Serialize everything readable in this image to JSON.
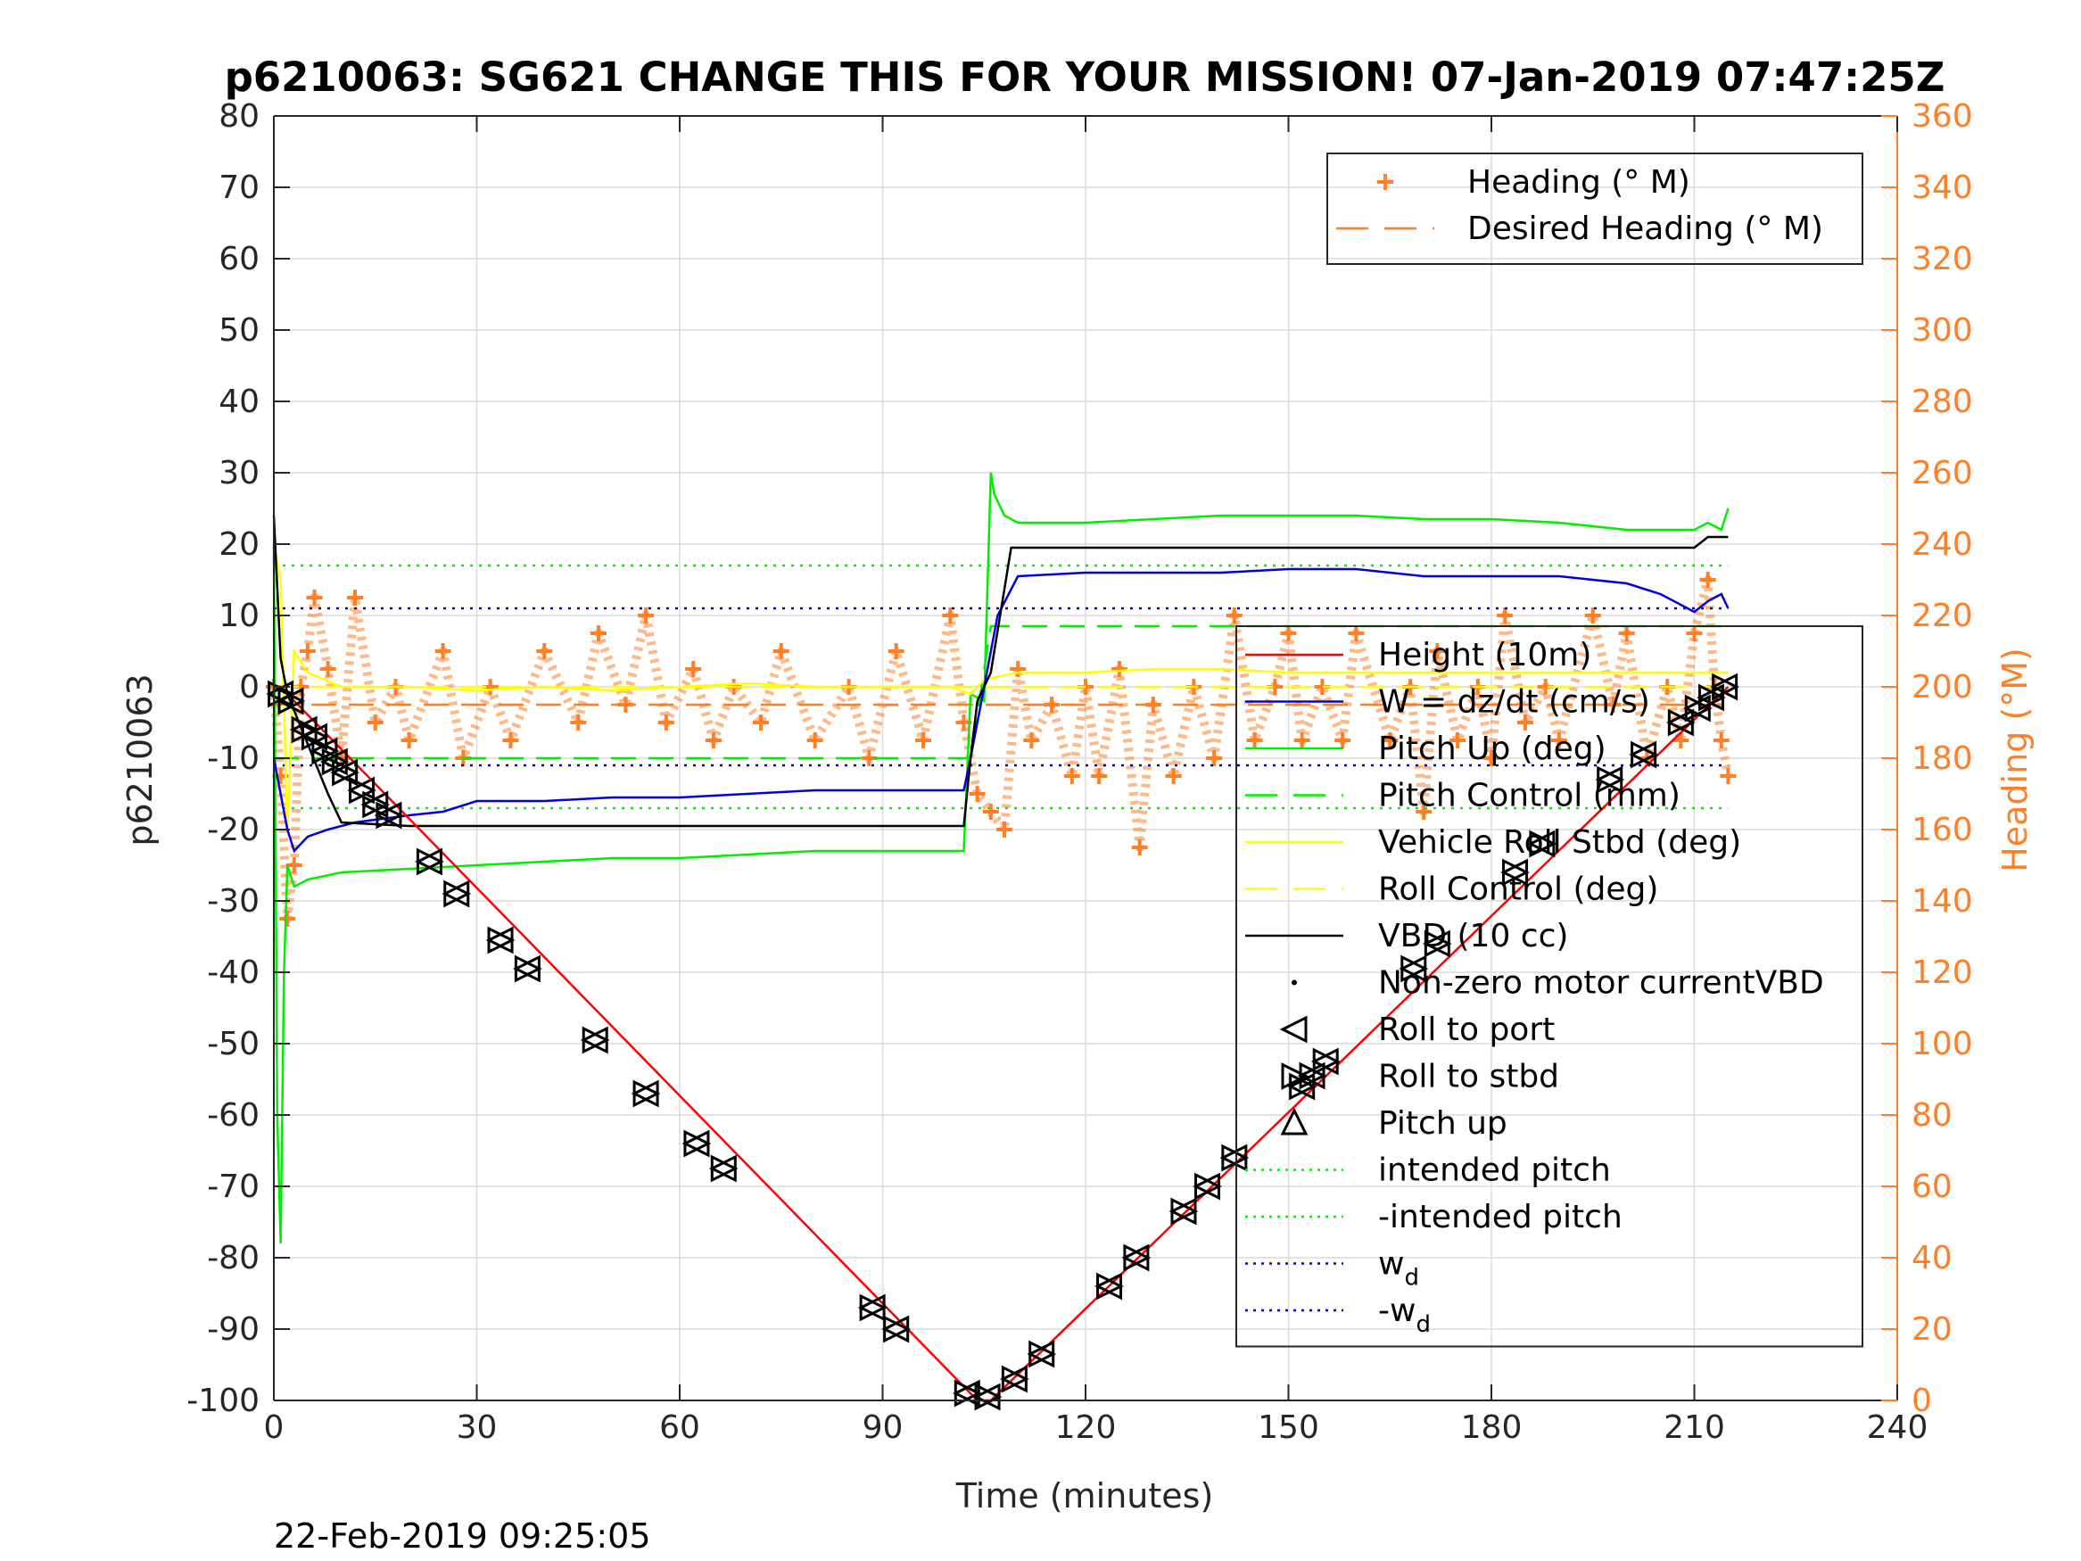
{
  "chart_data": {
    "type": "line",
    "title": "p6210063: SG621 CHANGE THIS FOR YOUR MISSION! 07-Jan-2019 07:47:25Z",
    "xlabel": "Time (minutes)",
    "ylabel": "p6210063",
    "y2label": "Heading (°M)",
    "xlim": [
      0,
      240
    ],
    "ylim": [
      -100,
      80
    ],
    "y2lim": [
      0,
      360
    ],
    "xticks": [
      "0",
      "30",
      "60",
      "90",
      "120",
      "150",
      "180",
      "210",
      "240"
    ],
    "yticks": [
      "80",
      "70",
      "60",
      "50",
      "40",
      "30",
      "20",
      "10",
      "0",
      "-10",
      "-20",
      "-30",
      "-40",
      "-50",
      "-60",
      "-70",
      "-80",
      "-90",
      "-100"
    ],
    "y2ticks": [
      "360",
      "340",
      "320",
      "300",
      "280",
      "260",
      "240",
      "220",
      "200",
      "180",
      "160",
      "140",
      "120",
      "100",
      "80",
      "60",
      "40",
      "20",
      "0"
    ],
    "grid": true,
    "timestamp": "22-Feb-2019 09:25:05",
    "colors": {
      "depth": "#ff0000",
      "w": "#0000dd",
      "pitch": "#00ee00",
      "roll": "#ffff00",
      "vbd": "#000000",
      "heading": "#ff7f27",
      "axis_right": "#ff7f27"
    },
    "legend_heading": {
      "position": "top-right",
      "entries": [
        {
          "label": "Heading (° M)",
          "style": "plus",
          "color": "#ff7f27"
        },
        {
          "label": "Desired Heading (° M)",
          "style": "dashed",
          "color": "#ff7f27"
        }
      ]
    },
    "legend_main": {
      "position": "right",
      "entries": [
        {
          "label": "Height (10m)",
          "style": "solid",
          "color": "#ff0000"
        },
        {
          "label": "W = dz/dt (cm/s)",
          "style": "solid",
          "color": "#0000dd"
        },
        {
          "label": "Pitch Up (deg)",
          "style": "solid",
          "color": "#00ee00"
        },
        {
          "label": "Pitch Control (mm)",
          "style": "dashed",
          "color": "#00ee00"
        },
        {
          "label": "Vehicle Roll Stbd (deg)",
          "style": "solid",
          "color": "#ffff00"
        },
        {
          "label": "Roll Control (deg)",
          "style": "dashed",
          "color": "#ffff00"
        },
        {
          "label": "VBD (10 cc)",
          "style": "solid",
          "color": "#000000"
        },
        {
          "label": "Non-zero motor currentVBD",
          "style": "dot",
          "color": "#000000"
        },
        {
          "label": "Roll to port",
          "style": "tri-left",
          "color": "#000000"
        },
        {
          "label": "Roll to stbd",
          "style": "tri-right",
          "color": "#000000"
        },
        {
          "label": "Pitch up",
          "style": "tri-up",
          "color": "#000000"
        },
        {
          "label": "intended pitch",
          "style": "dotted",
          "color": "#00ee00"
        },
        {
          "label": "-intended pitch",
          "style": "dotted",
          "color": "#00ee00"
        },
        {
          "label": "w",
          "sub": "d",
          "style": "dotted",
          "color": "#0000dd"
        },
        {
          "label": "-w",
          "sub": "d",
          "style": "dotted",
          "color": "#0000dd"
        }
      ]
    },
    "series": [
      {
        "name": "Height (10m)",
        "axis": "left",
        "style": "solid",
        "color": "#ff0000",
        "x": [
          0,
          2,
          104,
          106,
          215
        ],
        "y": [
          0,
          -1,
          -100,
          -100,
          0
        ]
      },
      {
        "name": "W = dz/dt (cm/s)",
        "axis": "left",
        "style": "solid",
        "color": "#0000dd",
        "x": [
          0,
          1,
          2,
          3,
          5,
          8,
          12,
          16,
          20,
          25,
          30,
          40,
          50,
          60,
          70,
          80,
          90,
          100,
          102,
          103,
          105,
          107,
          110,
          120,
          130,
          140,
          150,
          160,
          170,
          180,
          190,
          200,
          205,
          210,
          212,
          214,
          215
        ],
        "y": [
          -10,
          -15,
          -20,
          -23,
          -21,
          -20,
          -19,
          -18.5,
          -18,
          -17.5,
          -16,
          -16,
          -15.5,
          -15.5,
          -15,
          -14.5,
          -14.5,
          -14.5,
          -14.5,
          -10,
          0,
          10,
          15.5,
          16,
          16,
          16,
          16.5,
          16.5,
          15.5,
          15.5,
          15.5,
          14.5,
          13,
          10.5,
          12,
          13,
          11
        ]
      },
      {
        "name": "Pitch Up (deg)",
        "axis": "left",
        "style": "solid",
        "color": "#00ee00",
        "x": [
          0,
          0.5,
          1,
          1.5,
          2,
          3,
          5,
          10,
          20,
          30,
          40,
          50,
          60,
          70,
          80,
          90,
          100,
          102,
          103,
          105,
          106,
          106.5,
          107,
          108,
          110,
          120,
          130,
          140,
          150,
          160,
          170,
          180,
          190,
          200,
          210,
          212,
          214,
          215
        ],
        "y": [
          20,
          -60,
          -78,
          -40,
          -25,
          -28,
          -27,
          -26,
          -25.5,
          -25,
          -24.5,
          -24,
          -24,
          -23.5,
          -23,
          -23,
          -23,
          -23,
          -1,
          -2,
          30,
          27,
          26,
          24,
          23,
          23,
          23.5,
          24,
          24,
          24,
          23.5,
          23.5,
          23,
          22,
          22,
          23,
          22,
          25
        ]
      },
      {
        "name": "Pitch Control (mm)",
        "axis": "left",
        "style": "dashed",
        "color": "#00ee00",
        "x": [
          0,
          103,
          106,
          215
        ],
        "y": [
          -10,
          -10,
          8.5,
          8.5
        ]
      },
      {
        "name": "Vehicle Roll Stbd (deg)",
        "axis": "left",
        "style": "solid",
        "color": "#ffff00",
        "x": [
          0,
          1,
          2,
          3,
          5,
          10,
          20,
          30,
          40,
          50,
          60,
          70,
          80,
          90,
          100,
          103,
          105,
          110,
          120,
          130,
          140,
          150,
          160,
          170,
          180,
          190,
          200,
          210,
          215
        ],
        "y": [
          20,
          15,
          -20,
          5,
          2,
          0,
          0,
          -0.5,
          0,
          -0.5,
          0,
          0.5,
          0,
          0,
          0,
          -1,
          1,
          2,
          2,
          2.5,
          2.5,
          2,
          2,
          2,
          2,
          2,
          2,
          2,
          2
        ]
      },
      {
        "name": "Roll Control (deg)",
        "axis": "left",
        "style": "dashed",
        "color": "#ffff00",
        "x": [
          0,
          215
        ],
        "y": [
          0,
          0
        ]
      },
      {
        "name": "VBD (10 cc)",
        "axis": "left",
        "style": "solid",
        "color": "#000000",
        "x": [
          0,
          1,
          2,
          5,
          8,
          10,
          20,
          50,
          100,
          102,
          103,
          104,
          106,
          109,
          110,
          150,
          210,
          212,
          215
        ],
        "y": [
          24,
          4,
          -1,
          -8,
          -15,
          -19,
          -19.5,
          -19.5,
          -19.5,
          -19.5,
          -10,
          -2,
          2,
          19.5,
          19.5,
          19.5,
          19.5,
          21,
          21
        ]
      },
      {
        "name": "intended pitch",
        "axis": "left",
        "style": "dotted",
        "color": "#00ee00",
        "x": [
          0,
          215
        ],
        "y": [
          17,
          17
        ]
      },
      {
        "name": "-intended pitch",
        "axis": "left",
        "style": "dotted",
        "color": "#00ee00",
        "x": [
          0,
          215
        ],
        "y": [
          -17,
          -17
        ]
      },
      {
        "name": "w_d",
        "axis": "left",
        "style": "dotted",
        "color": "#0000dd",
        "x": [
          0,
          215
        ],
        "y": [
          11,
          11
        ]
      },
      {
        "name": "-w_d",
        "axis": "left",
        "style": "dotted",
        "color": "#0000dd",
        "x": [
          0,
          215
        ],
        "y": [
          -11,
          -11
        ]
      },
      {
        "name": "Desired Heading (° M)",
        "axis": "right",
        "style": "dashed",
        "color": "#ff7f27",
        "x": [
          0,
          215
        ],
        "y": [
          195,
          195
        ]
      },
      {
        "name": "Heading (° M)",
        "axis": "right",
        "style": "plus",
        "color": "#ff7f27",
        "x": [
          0,
          1,
          2,
          3,
          4,
          5,
          6,
          8,
          10,
          12,
          15,
          18,
          20,
          25,
          28,
          32,
          35,
          40,
          45,
          48,
          52,
          55,
          58,
          62,
          65,
          68,
          72,
          75,
          80,
          85,
          88,
          92,
          96,
          100,
          102,
          104,
          106,
          108,
          110,
          112,
          115,
          118,
          120,
          122,
          125,
          128,
          130,
          133,
          136,
          139,
          142,
          145,
          148,
          150,
          152,
          155,
          158,
          160,
          165,
          168,
          170,
          172,
          175,
          178,
          180,
          182,
          185,
          188,
          190,
          195,
          198,
          200,
          203,
          206,
          208,
          210,
          212,
          213,
          214,
          215
        ],
        "y": [
          200,
          175,
          135,
          150,
          200,
          210,
          225,
          205,
          180,
          225,
          190,
          200,
          185,
          210,
          180,
          200,
          185,
          210,
          190,
          215,
          195,
          220,
          190,
          205,
          185,
          200,
          190,
          210,
          185,
          200,
          180,
          210,
          185,
          220,
          190,
          170,
          165,
          160,
          205,
          185,
          195,
          175,
          200,
          175,
          205,
          155,
          195,
          175,
          200,
          180,
          220,
          185,
          200,
          215,
          185,
          200,
          185,
          215,
          185,
          200,
          165,
          210,
          185,
          200,
          180,
          220,
          190,
          200,
          185,
          220,
          195,
          215,
          180,
          200,
          185,
          215,
          230,
          200,
          185,
          175
        ]
      }
    ],
    "markers": {
      "roll_pairs": [
        {
          "x": 1,
          "y": -1
        },
        {
          "x": 2.5,
          "y": -2
        },
        {
          "x": 4.5,
          "y": -6
        },
        {
          "x": 6,
          "y": -7
        },
        {
          "x": 7.5,
          "y": -9
        },
        {
          "x": 9,
          "y": -10.5
        },
        {
          "x": 10.5,
          "y": -12
        },
        {
          "x": 13,
          "y": -14.5
        },
        {
          "x": 15,
          "y": -16.5
        },
        {
          "x": 17,
          "y": -18
        },
        {
          "x": 23,
          "y": -24.5
        },
        {
          "x": 27,
          "y": -29
        },
        {
          "x": 33.5,
          "y": -35.5
        },
        {
          "x": 37.5,
          "y": -39.5
        },
        {
          "x": 47.5,
          "y": -49.5
        },
        {
          "x": 55,
          "y": -57
        },
        {
          "x": 62.5,
          "y": -64
        },
        {
          "x": 66.5,
          "y": -67.5
        },
        {
          "x": 88.5,
          "y": -87
        },
        {
          "x": 92,
          "y": -90
        },
        {
          "x": 102.5,
          "y": -99
        },
        {
          "x": 105.5,
          "y": -99.5
        },
        {
          "x": 109.5,
          "y": -97
        },
        {
          "x": 113.5,
          "y": -93.5
        },
        {
          "x": 123.5,
          "y": -84
        },
        {
          "x": 127.5,
          "y": -80
        },
        {
          "x": 134.5,
          "y": -73.5
        },
        {
          "x": 138,
          "y": -70
        },
        {
          "x": 142,
          "y": -66
        },
        {
          "x": 152,
          "y": -56
        },
        {
          "x": 153.5,
          "y": -54.5
        },
        {
          "x": 155.5,
          "y": -52.5
        },
        {
          "x": 168.5,
          "y": -39.5
        },
        {
          "x": 172,
          "y": -36
        },
        {
          "x": 183.5,
          "y": -26
        },
        {
          "x": 187.5,
          "y": -22
        },
        {
          "x": 197.5,
          "y": -13
        },
        {
          "x": 202.5,
          "y": -9.5
        },
        {
          "x": 208,
          "y": -5
        },
        {
          "x": 210.5,
          "y": -3
        },
        {
          "x": 212.5,
          "y": -1.5
        },
        {
          "x": 214.5,
          "y": 0
        }
      ]
    }
  }
}
